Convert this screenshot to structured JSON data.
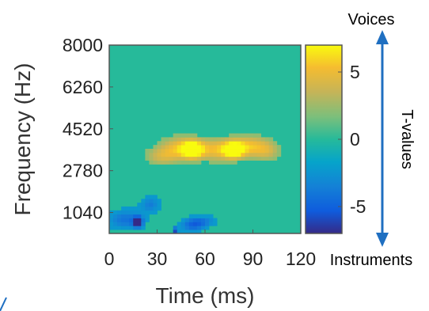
{
  "chart_data": {
    "type": "heatmap",
    "title": "",
    "xlabel": "Time (ms)",
    "ylabel": "Frequency (Hz)",
    "x_ticks": [
      "0",
      "30",
      "60",
      "90",
      "120"
    ],
    "x_tick_values": [
      0,
      30,
      60,
      90,
      120
    ],
    "xlim": [
      0,
      120
    ],
    "y_ticks": [
      "8000",
      "6260",
      "4520",
      "2780",
      "1040"
    ],
    "y_tick_values": [
      8000,
      6260,
      4520,
      2780,
      1040
    ],
    "ylim": [
      170,
      8000
    ],
    "colorbar": {
      "label": "T-values",
      "ticks": [
        "5",
        "0",
        "-5"
      ],
      "tick_values": [
        5,
        0,
        -5
      ],
      "range": [
        -7,
        7
      ],
      "colormap": "parula",
      "top_label": "Voices",
      "bottom_label": "Instruments"
    },
    "background_value": 0,
    "clusters": [
      {
        "name_hint": "voice-positive",
        "t_peak": 6.5,
        "time_range": [
          19,
          117
        ],
        "freq_range": [
          2650,
          4750
        ]
      },
      {
        "name_hint": "instrument-negative-1",
        "t_peak": -6.5,
        "time_range": [
          0,
          35
        ],
        "freq_range": [
          170,
          1900
        ]
      },
      {
        "name_hint": "instrument-negative-2",
        "t_peak": -6.5,
        "time_range": [
          40,
          71
        ],
        "freq_range": [
          170,
          1150
        ]
      }
    ],
    "grid": false
  },
  "colors": {
    "arrow": "#1f6fc1",
    "zero": "#26ba9a"
  }
}
